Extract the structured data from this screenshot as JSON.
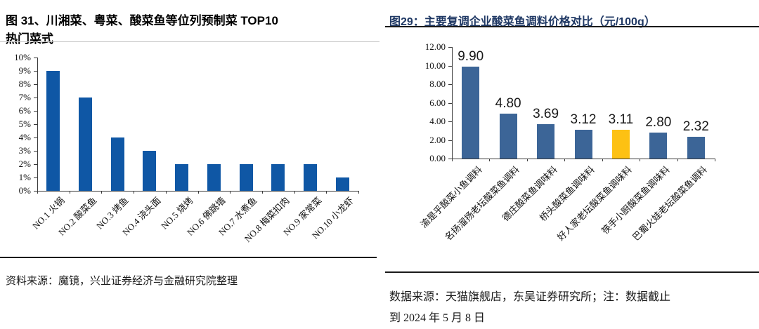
{
  "page": {
    "background": "#ffffff"
  },
  "left_panel": {
    "title_line1": "图 31、川湘菜、粤菜、酸菜鱼等位列预制菜 TOP10",
    "title_line2": "热门菜式",
    "source": "资料来源：魔镜，兴业证券经济与金融研究院整理"
  },
  "right_panel": {
    "title": "图29：主要复调企业酸菜鱼调料价格对比（元/100g）",
    "title_color": "#1F3864",
    "source_line1": "数据来源：天猫旗舰店，东吴证券研究所；注：数据截止",
    "source_line2": "到 2024 年 5 月 8 日"
  },
  "chart_data": [
    {
      "type": "bar",
      "title": "川湘菜、粤菜、酸菜鱼等位列预制菜TOP10热门菜式",
      "categories": [
        "NO.1 火锅",
        "NO.2 酸菜鱼",
        "NO.3 烤鱼",
        "NO.4 浇头面",
        "NO.5 烧烤",
        "NO.6 佛跳墙",
        "NO.7 水煮鱼",
        "NO.8 梅菜扣肉",
        "NO.9 家常菜",
        "NO.10 小龙虾"
      ],
      "values": [
        9,
        7,
        4,
        3,
        2,
        2,
        2,
        2,
        2,
        1
      ],
      "unit": "%",
      "xlabel": "",
      "ylabel": "",
      "ylim": [
        0,
        10
      ],
      "ytick_labels": [
        "0%",
        "1%",
        "2%",
        "3%",
        "4%",
        "5%",
        "6%",
        "7%",
        "8%",
        "9%",
        "10%"
      ],
      "grid": false,
      "legend": "none",
      "bar_color": "#0F57A5"
    },
    {
      "type": "bar",
      "title": "主要复调企业酸菜鱼调料价格对比（元/100g）",
      "categories": [
        "渝是乎酸菜小鱼调料",
        "名扬溜扬老坛酸菜鱼调料",
        "德庄酸菜鱼调味料",
        "桥头酸菜鱼调味料",
        "好人家老坛酸菜鱼调味料",
        "筷手小厨酸菜鱼调味料",
        "巴蜀火娃老坛酸菜鱼调料"
      ],
      "values": [
        9.9,
        4.8,
        3.69,
        3.12,
        3.11,
        2.8,
        2.32
      ],
      "data_labels": [
        "9.90",
        "4.80",
        "3.69",
        "3.12",
        "3.11",
        "2.80",
        "2.32"
      ],
      "unit": "元/100g",
      "xlabel": "",
      "ylabel": "",
      "ylim": [
        0,
        12
      ],
      "ytick_labels": [
        "0.00",
        "2.00",
        "4.00",
        "6.00",
        "8.00",
        "10.00",
        "12.00"
      ],
      "grid": false,
      "legend": "none",
      "bar_color": "#3C6597",
      "highlight_index": 4,
      "highlight_color": "#FDC113"
    }
  ]
}
